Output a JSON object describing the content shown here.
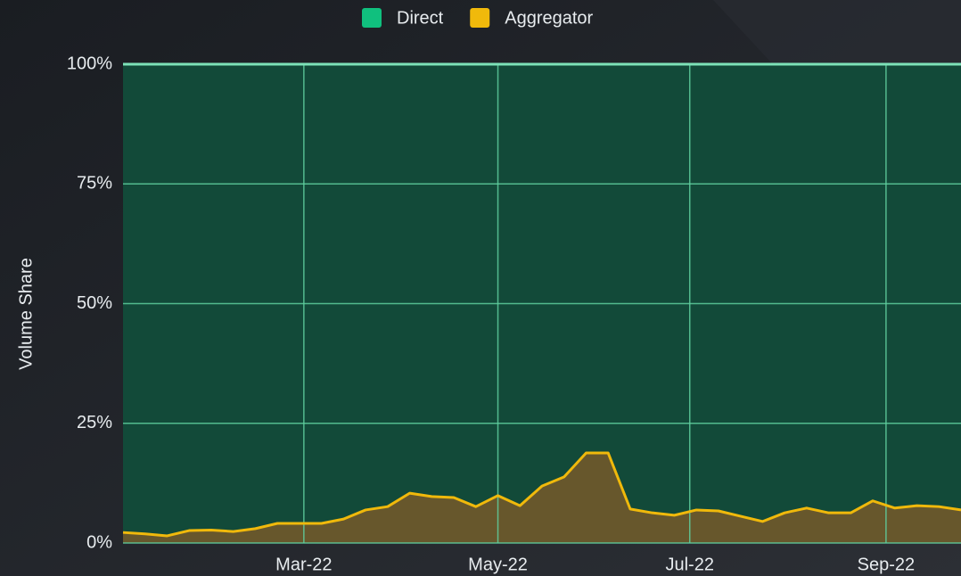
{
  "chart_data": {
    "type": "area",
    "stacked": true,
    "ylabel": "Volume Share",
    "legend": "top",
    "grid": true,
    "x": [
      0,
      1,
      2,
      3,
      4,
      5,
      6,
      7,
      8,
      9,
      10,
      11,
      12,
      13,
      14,
      15,
      16,
      17,
      18,
      19,
      20,
      21,
      22,
      23,
      24,
      25,
      26,
      27,
      28,
      29,
      30,
      31,
      32,
      33,
      34,
      35,
      36,
      37,
      38
    ],
    "xlim": [
      0,
      38
    ],
    "xticks": [
      {
        "value": 8.2,
        "label": "Mar-22"
      },
      {
        "value": 17.0,
        "label": "May-22"
      },
      {
        "value": 25.7,
        "label": "Jul-22"
      },
      {
        "value": 34.6,
        "label": "Sep-22"
      }
    ],
    "ylim": [
      0,
      100
    ],
    "yticks": [
      {
        "value": 0,
        "label": "0%"
      },
      {
        "value": 25,
        "label": "25%"
      },
      {
        "value": 50,
        "label": "50%"
      },
      {
        "value": 75,
        "label": "75%"
      },
      {
        "value": 100,
        "label": "100%"
      }
    ],
    "series": [
      {
        "name": "Direct",
        "color": "#10c07e",
        "values": [
          97.8,
          98.1,
          98.5,
          97.4,
          97.3,
          97.6,
          97.0,
          95.9,
          95.9,
          95.9,
          95.0,
          93.1,
          92.4,
          89.6,
          90.3,
          90.5,
          92.4,
          90.1,
          92.2,
          88.1,
          86.2,
          81.2,
          81.2,
          92.9,
          93.7,
          94.2,
          93.1,
          93.3,
          94.4,
          95.5,
          93.7,
          92.7,
          93.7,
          93.7,
          91.2,
          92.7,
          92.2,
          92.4,
          93.1
        ]
      },
      {
        "name": "Aggregator",
        "color": "#f0b90b",
        "values": [
          2.2,
          1.9,
          1.5,
          2.6,
          2.7,
          2.4,
          3.0,
          4.1,
          4.1,
          4.1,
          5.0,
          6.9,
          7.6,
          10.4,
          9.7,
          9.5,
          7.6,
          9.9,
          7.8,
          11.9,
          13.8,
          18.8,
          18.8,
          7.1,
          6.3,
          5.8,
          6.9,
          6.7,
          5.6,
          4.5,
          6.3,
          7.3,
          6.3,
          6.3,
          8.8,
          7.3,
          7.8,
          7.6,
          6.9
        ]
      }
    ]
  }
}
